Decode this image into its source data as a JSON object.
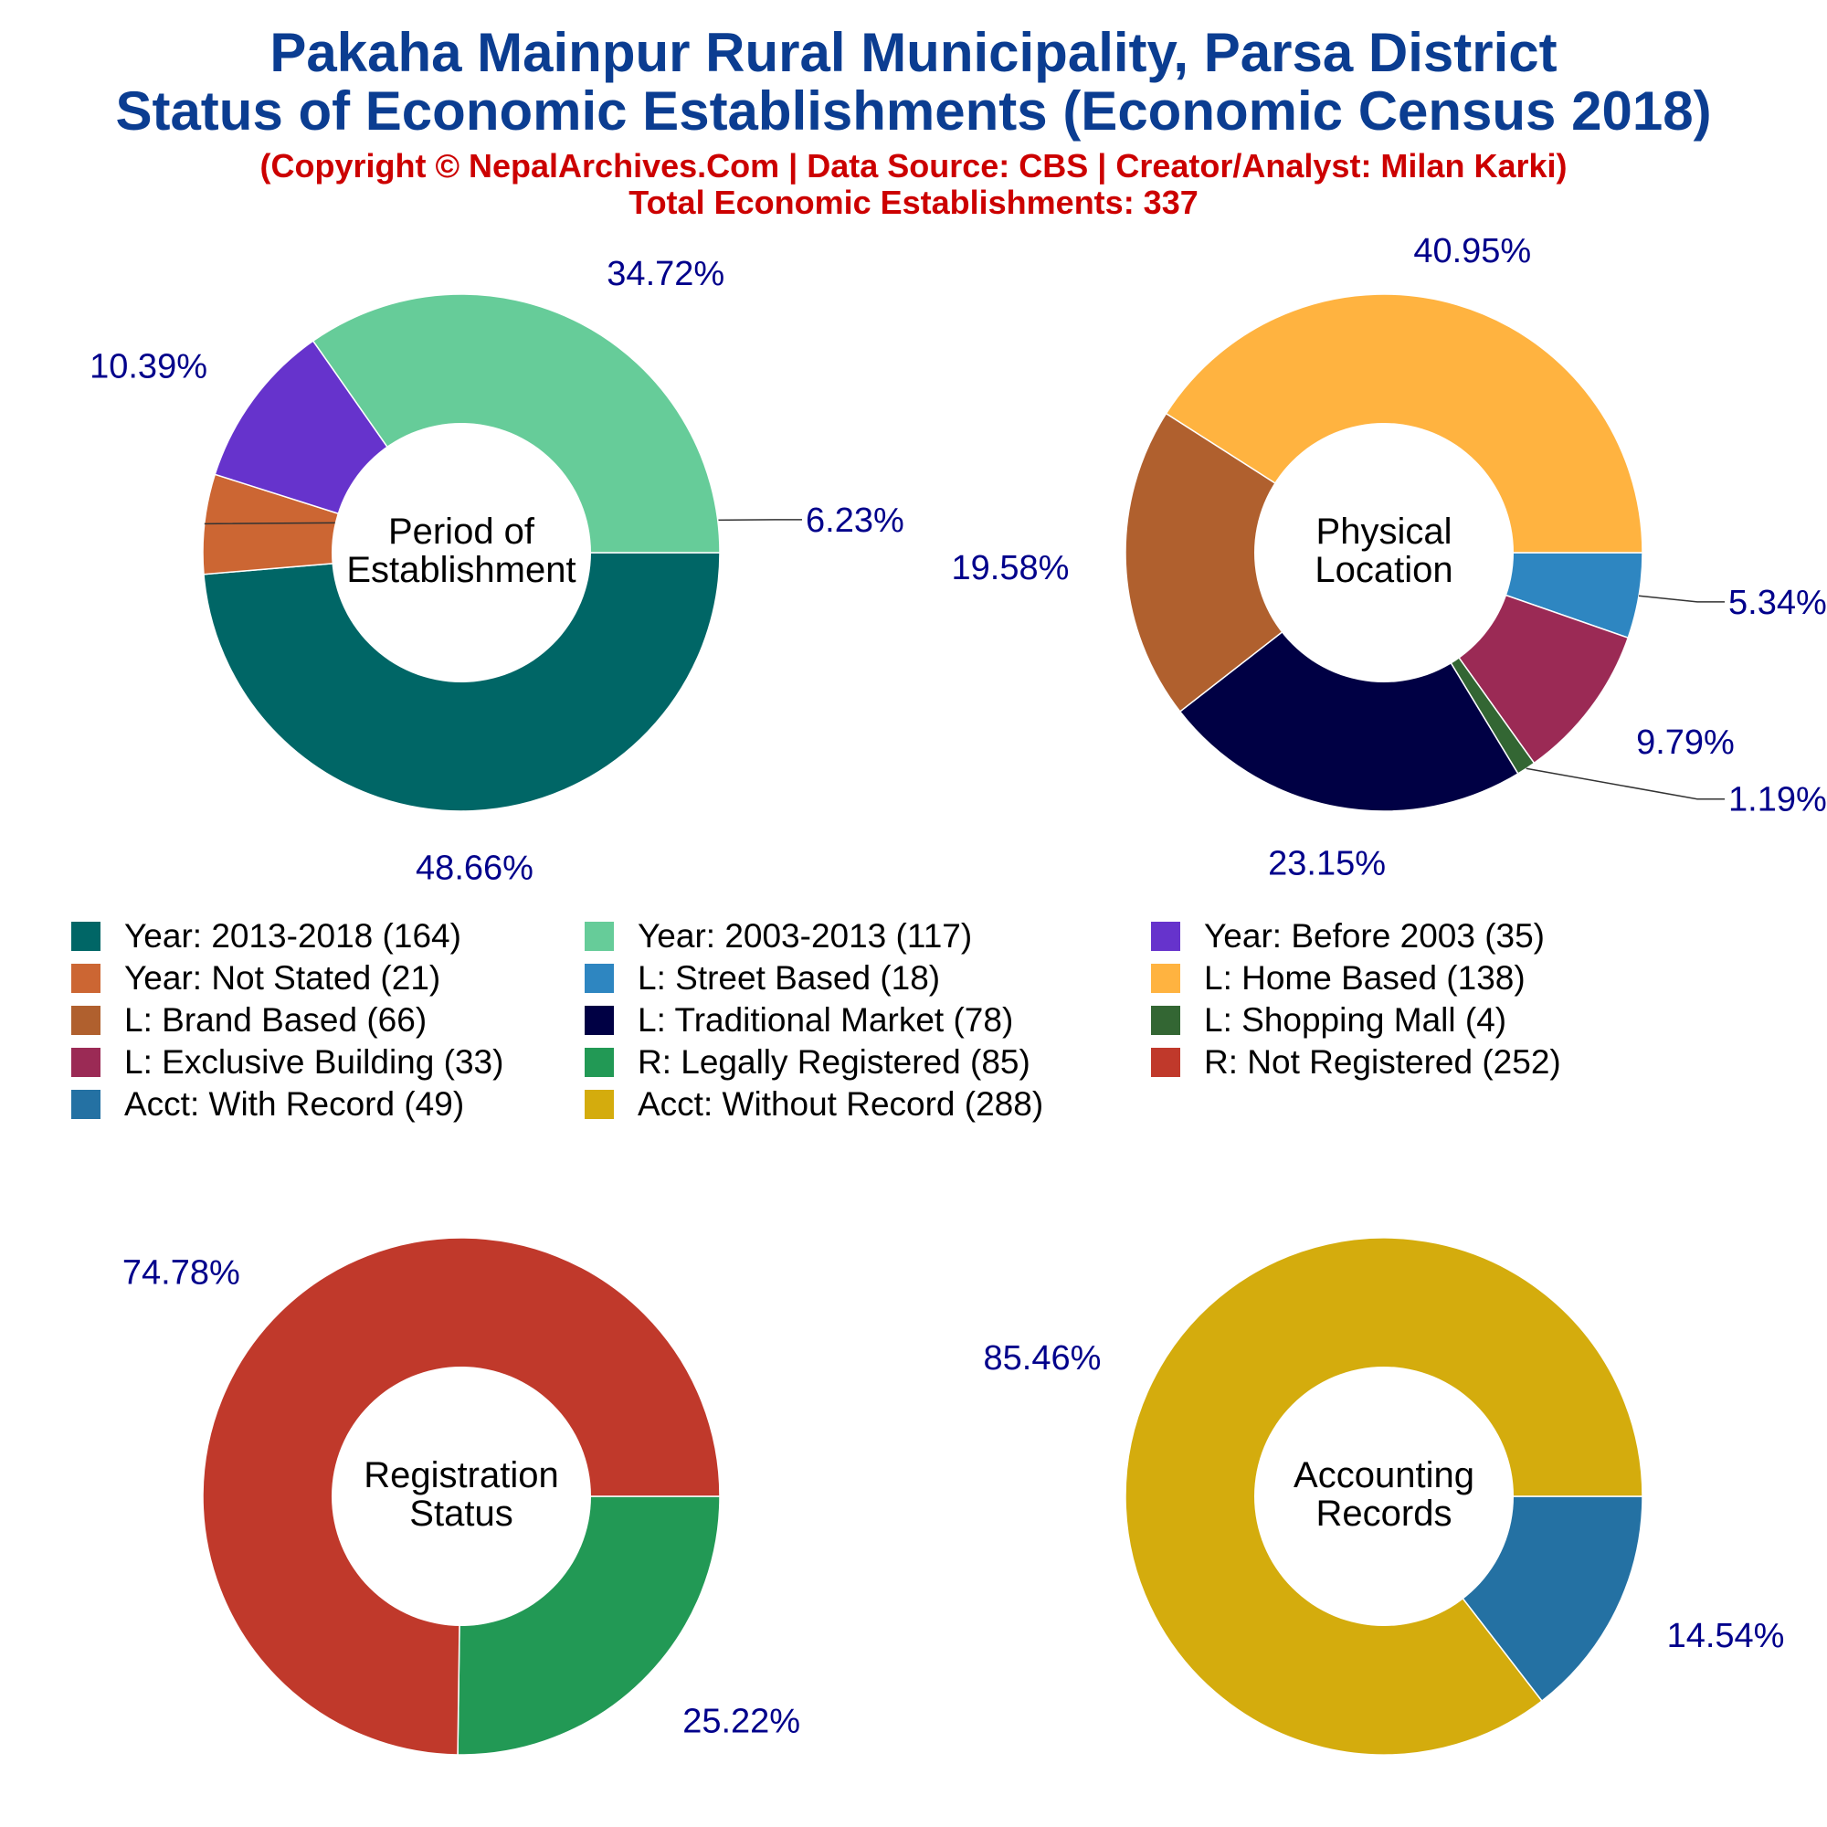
{
  "header": {
    "title_line1": "Pakaha Mainpur Rural Municipality, Parsa District",
    "title_line2": "Status of Economic Establishments (Economic Census 2018)",
    "copyright": "(Copyright © NepalArchives.Com | Data Source: CBS | Creator/Analyst: Milan Karki)",
    "total": "Total Economic Establishments: 337"
  },
  "legend": [
    {
      "label": "Year: 2013-2018 (164)",
      "color": "#006666"
    },
    {
      "label": "Year: 2003-2013 (117)",
      "color": "#66cc99"
    },
    {
      "label": "Year: Before 2003 (35)",
      "color": "#6633cc"
    },
    {
      "label": "Year: Not Stated (21)",
      "color": "#cc6633"
    },
    {
      "label": "L: Street Based (18)",
      "color": "#2e86c1"
    },
    {
      "label": "L: Home Based (138)",
      "color": "#ffb340"
    },
    {
      "label": "L: Brand Based (66)",
      "color": "#b0602e"
    },
    {
      "label": "L: Traditional Market (78)",
      "color": "#000044"
    },
    {
      "label": "L: Shopping Mall (4)",
      "color": "#336633"
    },
    {
      "label": "L: Exclusive Building (33)",
      "color": "#9b2a55"
    },
    {
      "label": "R: Legally Registered (85)",
      "color": "#229955"
    },
    {
      "label": "R: Not Registered (252)",
      "color": "#c0392b"
    },
    {
      "label": "Acct: With Record (49)",
      "color": "#2471a3"
    },
    {
      "label": "Acct: Without Record (288)",
      "color": "#d4ac0d"
    }
  ],
  "chart_data": [
    {
      "type": "pie",
      "donut": true,
      "center_label": [
        "Period of",
        "Establishment"
      ],
      "slices": [
        {
          "name": "Year: 2013-2018",
          "value": 164,
          "label": "48.66%",
          "color": "#006666"
        },
        {
          "name": "Year: Not Stated",
          "value": 21,
          "label": "6.23%",
          "color": "#cc6633"
        },
        {
          "name": "Year: Before 2003",
          "value": 35,
          "label": "10.39%",
          "color": "#6633cc"
        },
        {
          "name": "Year: 2003-2013",
          "value": 117,
          "label": "34.72%",
          "color": "#66cc99"
        }
      ]
    },
    {
      "type": "pie",
      "donut": true,
      "center_label": [
        "Physical",
        "Location"
      ],
      "slices": [
        {
          "name": "L: Street Based",
          "value": 18,
          "label": "5.34%",
          "color": "#2e86c1"
        },
        {
          "name": "L: Exclusive Building",
          "value": 33,
          "label": "9.79%",
          "color": "#9b2a55"
        },
        {
          "name": "L: Shopping Mall",
          "value": 4,
          "label": "1.19%",
          "color": "#336633"
        },
        {
          "name": "L: Traditional Market",
          "value": 78,
          "label": "23.15%",
          "color": "#000044"
        },
        {
          "name": "L: Brand Based",
          "value": 66,
          "label": "19.58%",
          "color": "#b0602e"
        },
        {
          "name": "L: Home Based",
          "value": 138,
          "label": "40.95%",
          "color": "#ffb340"
        }
      ]
    },
    {
      "type": "pie",
      "donut": true,
      "center_label": [
        "Registration",
        "Status"
      ],
      "slices": [
        {
          "name": "R: Legally Registered",
          "value": 85,
          "label": "25.22%",
          "color": "#229955"
        },
        {
          "name": "R: Not Registered",
          "value": 252,
          "label": "74.78%",
          "color": "#c0392b"
        }
      ]
    },
    {
      "type": "pie",
      "donut": true,
      "center_label": [
        "Accounting",
        "Records"
      ],
      "slices": [
        {
          "name": "Acct: With Record",
          "value": 49,
          "label": "14.54%",
          "color": "#2471a3"
        },
        {
          "name": "Acct: Without Record",
          "value": 288,
          "label": "85.46%",
          "color": "#d4ac0d"
        }
      ]
    }
  ]
}
